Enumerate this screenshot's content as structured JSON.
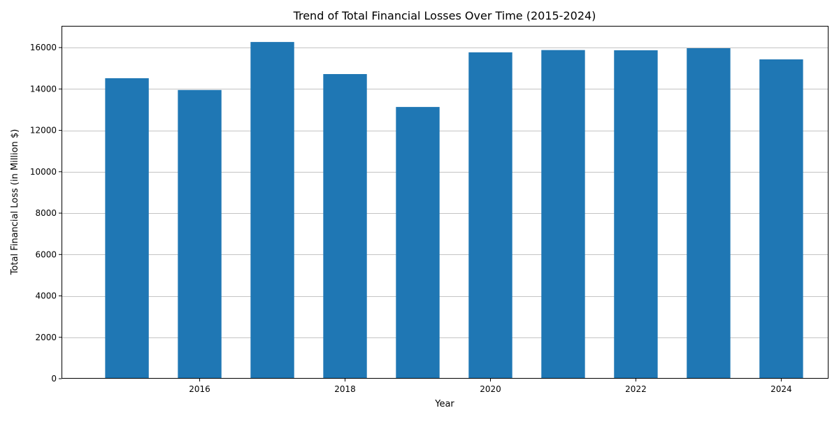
{
  "chart_data": {
    "type": "bar",
    "title": "Trend of Total Financial Losses Over Time (2015-2024)",
    "xlabel": "Year",
    "ylabel": "Total Financial Loss (in Million $)",
    "x": [
      2015,
      2016,
      2017,
      2018,
      2019,
      2020,
      2021,
      2022,
      2023,
      2024
    ],
    "values": [
      14520,
      13950,
      16270,
      14720,
      13130,
      15770,
      15880,
      15870,
      15970,
      15430
    ],
    "xlim": [
      2014.1,
      2024.65
    ],
    "ylim": [
      0,
      17050
    ],
    "x_ticks": [
      2016,
      2018,
      2020,
      2022,
      2024
    ],
    "y_ticks": [
      0,
      2000,
      4000,
      6000,
      8000,
      10000,
      12000,
      14000,
      16000
    ],
    "grid": "horizontal",
    "bar_color": "#1f77b4"
  }
}
